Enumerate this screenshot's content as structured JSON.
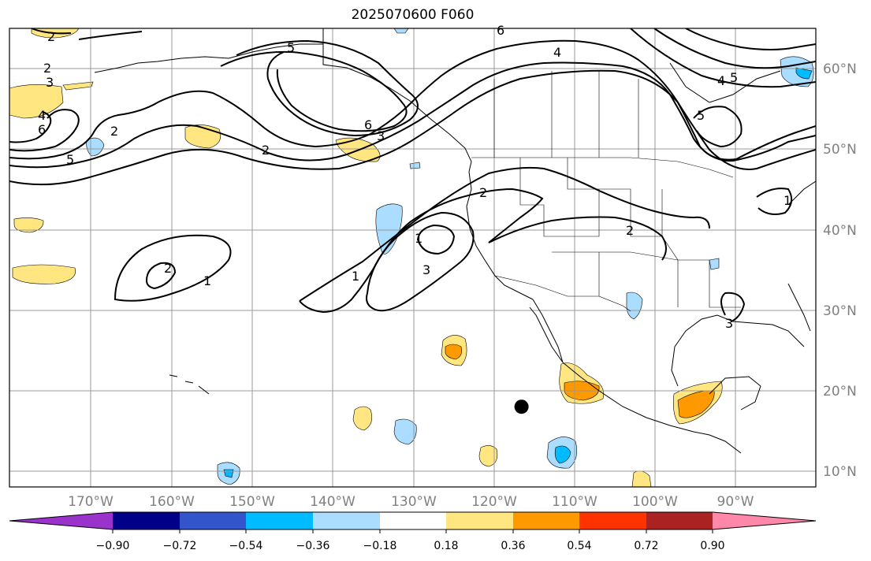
{
  "title": "2025070600 F060",
  "map": {
    "lat_labels": [
      "60°N",
      "50°N",
      "40°N",
      "30°N",
      "20°N",
      "10°N"
    ],
    "lon_labels": [
      "170°W",
      "160°W",
      "150°W",
      "140°W",
      "130°W",
      "120°W",
      "110°W",
      "100°W",
      "90°W"
    ],
    "contour_labels": [
      "2",
      "3",
      "4",
      "6",
      "5",
      "2",
      "2",
      "5",
      "6",
      "3",
      "2",
      "4",
      "4",
      "5",
      "5",
      "6",
      "1",
      "2",
      "3",
      "1",
      "2",
      "1",
      "3",
      "1",
      "2"
    ],
    "marker": {
      "lat": 18.0,
      "lon": -116.5
    }
  },
  "colorbar": {
    "ticks": [
      "−0.90",
      "−0.72",
      "−0.54",
      "−0.36",
      "−0.18",
      "0.18",
      "0.36",
      "0.54",
      "0.72",
      "0.90"
    ],
    "colors": [
      "#9933cc",
      "#000088",
      "#3355cc",
      "#00bbff",
      "#aaddff",
      "#ffffff",
      "#ffe680",
      "#ff9900",
      "#ff3300",
      "#aa2222",
      "#ff88aa"
    ]
  }
}
